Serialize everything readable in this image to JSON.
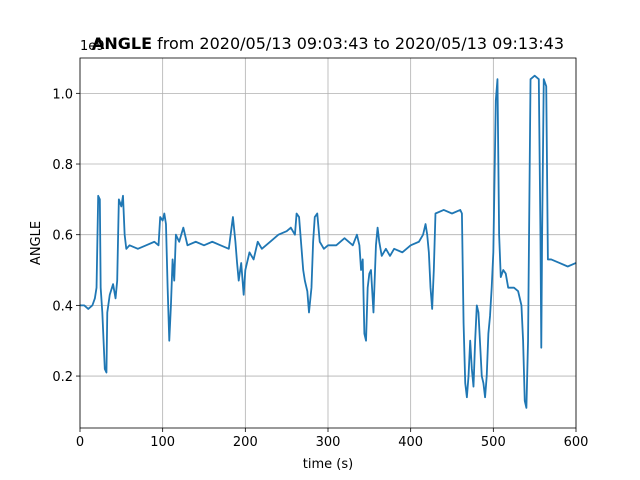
{
  "chart_data": {
    "type": "line",
    "title": [
      "ANGLE",
      "from 2020/05/13 09:03:43 to 2020/05/13 09:13:43"
    ],
    "xlabel": "time (s)",
    "ylabel": "ANGLE",
    "y_offset_label": "1e9",
    "xlim": [
      0,
      600
    ],
    "ylim": [
      0.053,
      1.1
    ],
    "xticks": [
      0,
      100,
      200,
      300,
      400,
      500,
      600
    ],
    "yticks": [
      0.2,
      0.4,
      0.6,
      0.8,
      {
        "value": 1,
        "label": "1.0"
      }
    ],
    "grid": true,
    "x": [
      0,
      5,
      10,
      15,
      18,
      20,
      22,
      24,
      25,
      27,
      30,
      32,
      33,
      36,
      40,
      43,
      45,
      47,
      50,
      52,
      54,
      56,
      60,
      70,
      80,
      90,
      95,
      97,
      100,
      102,
      104,
      106,
      108,
      110,
      112,
      114,
      116,
      120,
      125,
      130,
      140,
      150,
      160,
      170,
      180,
      185,
      188,
      190,
      192,
      195,
      198,
      200,
      205,
      210,
      215,
      220,
      230,
      240,
      250,
      255,
      260,
      262,
      265,
      268,
      270,
      272,
      275,
      277,
      280,
      282,
      284,
      287,
      290,
      295,
      300,
      310,
      320,
      330,
      335,
      338,
      340,
      342,
      344,
      346,
      348,
      350,
      352,
      355,
      358,
      360,
      362,
      365,
      370,
      375,
      380,
      390,
      400,
      410,
      415,
      418,
      420,
      422,
      424,
      426,
      428,
      430,
      440,
      450,
      460,
      462,
      464,
      466,
      468,
      470,
      472,
      474,
      476,
      478,
      480,
      482,
      484,
      486,
      488,
      490,
      492,
      494,
      496,
      498,
      500,
      503,
      505,
      507,
      509,
      512,
      515,
      518,
      525,
      530,
      534,
      536,
      538,
      540,
      542,
      545,
      550,
      555,
      557,
      558,
      559,
      561,
      564,
      566,
      570,
      580,
      590,
      600
    ],
    "series": [
      {
        "name": "ANGLE",
        "color": "#1f77b4",
        "values": [
          0.4,
          0.4,
          0.39,
          0.4,
          0.42,
          0.45,
          0.71,
          0.7,
          0.45,
          0.38,
          0.22,
          0.21,
          0.38,
          0.43,
          0.46,
          0.42,
          0.47,
          0.7,
          0.68,
          0.71,
          0.6,
          0.56,
          0.57,
          0.56,
          0.57,
          0.58,
          0.57,
          0.65,
          0.64,
          0.66,
          0.63,
          0.45,
          0.3,
          0.4,
          0.53,
          0.47,
          0.6,
          0.58,
          0.62,
          0.57,
          0.58,
          0.57,
          0.58,
          0.57,
          0.56,
          0.65,
          0.58,
          0.52,
          0.47,
          0.52,
          0.43,
          0.5,
          0.55,
          0.53,
          0.58,
          0.56,
          0.58,
          0.6,
          0.61,
          0.62,
          0.6,
          0.66,
          0.65,
          0.56,
          0.5,
          0.47,
          0.44,
          0.38,
          0.45,
          0.58,
          0.65,
          0.66,
          0.58,
          0.56,
          0.57,
          0.57,
          0.59,
          0.57,
          0.6,
          0.57,
          0.5,
          0.53,
          0.32,
          0.3,
          0.45,
          0.49,
          0.5,
          0.38,
          0.57,
          0.62,
          0.58,
          0.54,
          0.56,
          0.54,
          0.56,
          0.55,
          0.57,
          0.58,
          0.6,
          0.63,
          0.6,
          0.55,
          0.45,
          0.39,
          0.5,
          0.66,
          0.67,
          0.66,
          0.67,
          0.66,
          0.35,
          0.18,
          0.14,
          0.2,
          0.3,
          0.22,
          0.17,
          0.3,
          0.4,
          0.38,
          0.29,
          0.2,
          0.18,
          0.14,
          0.2,
          0.32,
          0.37,
          0.45,
          0.55,
          0.98,
          1.04,
          0.6,
          0.48,
          0.5,
          0.49,
          0.45,
          0.45,
          0.44,
          0.4,
          0.3,
          0.13,
          0.11,
          0.3,
          1.04,
          1.05,
          1.04,
          0.6,
          0.28,
          0.6,
          1.04,
          1.02,
          0.53,
          0.53,
          0.52,
          0.51,
          0.52
        ]
      }
    ]
  }
}
